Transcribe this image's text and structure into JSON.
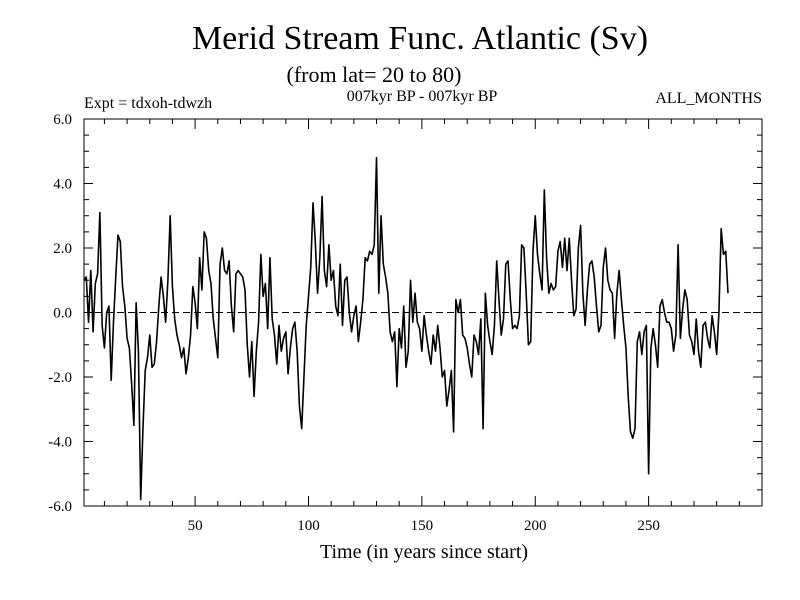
{
  "chart_data": {
    "type": "line",
    "title": "Merid Stream Func. Atlantic (Sv)",
    "subtitle": "(from lat= 20 to 80)",
    "expt_label": "Expt = tdxoh-tdwzh",
    "period_label": "007kyr BP - 007kyr BP",
    "months_label": "ALL_MONTHS",
    "xlabel": "Time (in years since start)",
    "ylabel": "",
    "xlim": [
      1,
      300
    ],
    "ylim": [
      -6,
      6
    ],
    "x_ticks": [
      50,
      100,
      150,
      200,
      250
    ],
    "y_ticks": [
      "-6.0",
      "-4.0",
      "-2.0",
      "0.0",
      "2.0",
      "4.0",
      "6.0"
    ],
    "zero_line": "dashed",
    "series": [
      {
        "x_start": 1,
        "x_step": 1,
        "values": [
          1.0,
          1.1,
          -0.3,
          1.3,
          -0.6,
          0.9,
          1.2,
          3.1,
          -0.4,
          -1.1,
          0.0,
          0.2,
          -2.1,
          -0.3,
          1.1,
          2.4,
          2.2,
          0.8,
          0.2,
          -0.8,
          -1.1,
          -2.2,
          -3.5,
          0.3,
          -1.2,
          -5.8,
          -3.6,
          -1.8,
          -1.4,
          -0.7,
          -1.7,
          -1.6,
          -0.9,
          0.2,
          1.1,
          0.5,
          -0.3,
          1.0,
          3.0,
          0.8,
          -0.2,
          -0.7,
          -1.0,
          -1.4,
          -1.1,
          -1.9,
          -1.4,
          -0.7,
          0.8,
          0.3,
          -0.5,
          1.7,
          0.7,
          2.5,
          2.3,
          1.3,
          0.9,
          -0.2,
          -0.8,
          -1.4,
          1.5,
          2.0,
          1.3,
          1.2,
          1.6,
          0.2,
          -0.6,
          1.2,
          1.3,
          1.2,
          1.1,
          0.7,
          -1.0,
          -2.0,
          -0.9,
          -2.6,
          -1.2,
          -0.3,
          1.8,
          0.5,
          0.9,
          -0.5,
          1.7,
          -0.2,
          -0.7,
          -1.6,
          -0.4,
          -1.2,
          -0.8,
          -0.6,
          -1.9,
          -1.1,
          -0.5,
          -0.3,
          -1.2,
          -2.9,
          -3.6,
          -2.0,
          -0.4,
          0.5,
          1.4,
          3.4,
          2.2,
          0.6,
          1.7,
          3.6,
          1.3,
          0.8,
          2.1,
          1.0,
          1.3,
          0.2,
          -0.1,
          1.5,
          -0.4,
          1.0,
          1.1,
          0.0,
          -0.6,
          -0.1,
          0.2,
          -0.9,
          -0.3,
          0.4,
          1.7,
          1.6,
          1.9,
          1.8,
          2.1,
          4.8,
          0.6,
          3.0,
          1.5,
          1.1,
          0.6,
          -0.6,
          -0.9,
          -0.6,
          -2.3,
          -0.5,
          -1.1,
          0.2,
          -1.7,
          -1.2,
          1.0,
          -0.3,
          0.6,
          -0.3,
          -0.5,
          -1.2,
          -0.1,
          -0.7,
          -1.2,
          -1.6,
          -0.7,
          -1.2,
          -0.4,
          -1.1,
          -2.0,
          -1.8,
          -2.9,
          -2.4,
          -1.8,
          -3.7,
          0.4,
          0.0,
          0.4,
          -0.7,
          -0.8,
          -1.1,
          -1.6,
          -2.0,
          -0.7,
          -0.9,
          -1.3,
          -0.2,
          -3.6,
          0.6,
          -0.4,
          -0.9,
          -1.3,
          -0.4,
          1.6,
          0.4,
          -0.7,
          -0.2,
          1.5,
          1.6,
          0.4,
          -0.5,
          -0.4,
          -0.5,
          -0.1,
          2.1,
          2.0,
          0.6,
          -1.0,
          -0.9,
          1.9,
          3.0,
          1.8,
          1.2,
          0.7,
          3.8,
          1.7,
          0.6,
          0.9,
          0.7,
          0.8,
          1.9,
          2.2,
          1.4,
          2.3,
          1.3,
          2.3,
          1.0,
          -0.1,
          0.1,
          2.0,
          2.7,
          0.6,
          -0.4,
          0.7,
          1.5,
          1.6,
          1.1,
          0.2,
          -0.6,
          -0.4,
          1.4,
          2.0,
          1.0,
          0.7,
          0.6,
          -0.8,
          0.6,
          1.3,
          0.4,
          -0.4,
          -1.1,
          -2.6,
          -3.7,
          -3.9,
          -3.6,
          -0.9,
          -0.6,
          -1.3,
          -0.6,
          -0.4,
          -5.0,
          -1.1,
          -0.5,
          -1.0,
          -1.7,
          0.2,
          0.4,
          0.0,
          -0.3,
          -0.3,
          -0.5,
          -1.2,
          -0.7,
          2.1,
          -0.8,
          0.1,
          0.7,
          0.4,
          -0.7,
          -0.9,
          -1.3,
          -0.2,
          -1.2,
          -1.7,
          -0.4,
          -0.3,
          -0.8,
          -1.1,
          -0.1,
          -0.6,
          -1.3,
          0.0,
          2.6,
          1.8,
          1.9,
          0.6
        ]
      }
    ]
  }
}
